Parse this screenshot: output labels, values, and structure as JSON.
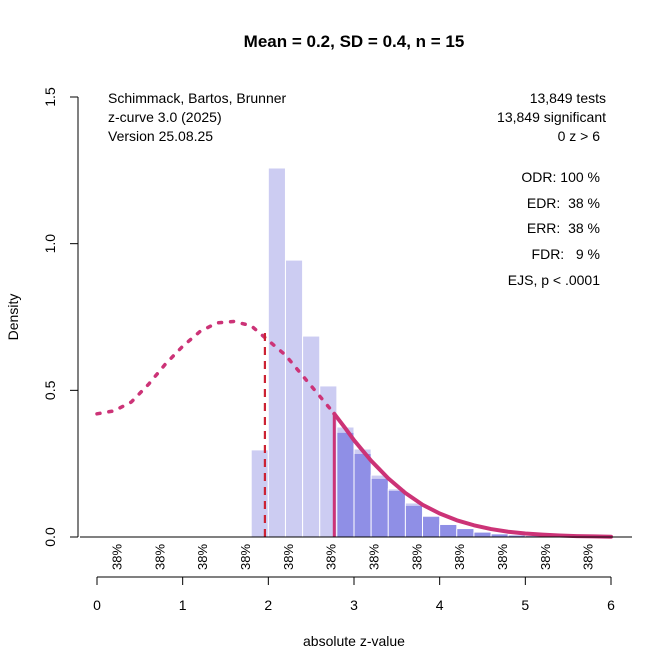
{
  "chart_data": {
    "type": "bar",
    "title": "Mean = 0.2, SD = 0.4, n = 15",
    "xlabel": "absolute z-value",
    "ylabel": "Density",
    "xlim": [
      0,
      6
    ],
    "ylim": [
      0,
      1.5
    ],
    "x_ticks": [
      "0",
      "1",
      "2",
      "3",
      "4",
      "5",
      "6"
    ],
    "y_ticks": [
      "0.0",
      "0.5",
      "1.0",
      "1.5"
    ],
    "grid": false,
    "info_left": [
      "Schimmack, Bartos, Brunner",
      "z-curve 3.0 (2025)",
      "Version 25.08.25"
    ],
    "info_right": [
      "13,849 tests",
      "13,849 significant",
      "0 z > 6"
    ],
    "stats": [
      "ODR: 100 %",
      "EDR:  38 %",
      "ERR:  38 %",
      "FDR:   9 %",
      "EJS, p < .0001"
    ],
    "power_labels": {
      "positions": [
        0.25,
        0.75,
        1.25,
        1.75,
        2.25,
        2.75,
        3.25,
        3.75,
        4.25,
        4.75,
        5.25,
        5.75
      ],
      "labels": [
        "38%",
        "38%",
        "38%",
        "38%",
        "38%",
        "38%",
        "38%",
        "38%",
        "38%",
        "38%",
        "38%",
        "38%"
      ]
    },
    "histogram": {
      "bin_width": 0.2,
      "bins_start": [
        1.8,
        2.0,
        2.2,
        2.4,
        2.6,
        2.8,
        3.0,
        3.2,
        3.4,
        3.6,
        3.8,
        4.0,
        4.2,
        4.4,
        4.6,
        4.8,
        5.0,
        5.2,
        5.4,
        5.6,
        5.8
      ],
      "observed": [
        0.297,
        1.258,
        0.944,
        0.685,
        0.515,
        0.375,
        0.3,
        0.211,
        0.164,
        0.116,
        0.072,
        0.041,
        0.027,
        0.015,
        0.009,
        0.005,
        0.003,
        0.002,
        0.001,
        0.001,
        0.0
      ],
      "fitted_region": [
        0,
        0,
        0,
        0,
        0,
        0.355,
        0.283,
        0.198,
        0.157,
        0.106,
        0.068,
        0.041,
        0.027,
        0.015,
        0.009,
        0.005,
        0.003,
        0.002,
        0.001,
        0.001,
        0.0
      ]
    },
    "series": [
      {
        "name": "fitted density (extrapolated, dotted)",
        "style": "dotted",
        "x": [
          0.0,
          0.2,
          0.4,
          0.6,
          0.8,
          1.0,
          1.2,
          1.4,
          1.6,
          1.8,
          1.96,
          2.2,
          2.4,
          2.6,
          2.77
        ],
        "y": [
          0.42,
          0.43,
          0.46,
          0.52,
          0.59,
          0.65,
          0.7,
          0.73,
          0.735,
          0.72,
          0.68,
          0.62,
          0.55,
          0.48,
          0.42
        ]
      },
      {
        "name": "fitted density (solid)",
        "style": "solid",
        "x": [
          2.77,
          2.9,
          3.0,
          3.2,
          3.4,
          3.6,
          3.8,
          4.0,
          4.2,
          4.4,
          4.6,
          4.8,
          5.0,
          5.2,
          5.4,
          5.6,
          5.8,
          6.0
        ],
        "y": [
          0.42,
          0.37,
          0.33,
          0.26,
          0.2,
          0.15,
          0.11,
          0.08,
          0.057,
          0.04,
          0.027,
          0.018,
          0.012,
          0.008,
          0.005,
          0.003,
          0.002,
          0.001
        ]
      }
    ],
    "vlines": [
      {
        "name": "significance-threshold",
        "x": 1.96,
        "y_top": 0.7,
        "style": "dashed"
      },
      {
        "name": "fit-start",
        "x": 2.77,
        "y_top": 0.42,
        "style": "solid"
      }
    ],
    "colors": {
      "bar_light": "#ccccf2",
      "bar_dark": "#8f8fe6",
      "curve": "#cc3377",
      "dashed_line": "#cc2233",
      "axis": "#000000"
    }
  }
}
